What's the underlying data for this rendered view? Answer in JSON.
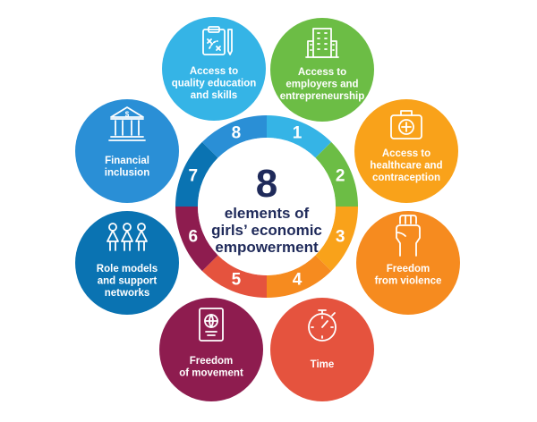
{
  "center": {
    "number": "8",
    "lines": [
      "elements of",
      "girls’ economic",
      "empowerment"
    ]
  },
  "elements": [
    {
      "number": "1",
      "lines": [
        "Access to",
        "quality education",
        "and skills"
      ],
      "color": "#35b4e6",
      "icon": "clipboard-plan-icon"
    },
    {
      "number": "2",
      "lines": [
        "Access to",
        "employers and",
        "entrepreneurship"
      ],
      "color": "#6cbd45",
      "icon": "office-building-icon"
    },
    {
      "number": "3",
      "lines": [
        "Access to",
        "healthcare and",
        "contraception"
      ],
      "color": "#f9a21a",
      "icon": "first-aid-kit-icon"
    },
    {
      "number": "4",
      "lines": [
        "Freedom",
        "from violence"
      ],
      "color": "#f68b1f",
      "icon": "raised-fist-icon"
    },
    {
      "number": "5",
      "lines": [
        "Time"
      ],
      "color": "#e5533e",
      "icon": "stopwatch-icon"
    },
    {
      "number": "6",
      "lines": [
        "Freedom",
        "of movement"
      ],
      "color": "#8e1c4f",
      "icon": "passport-icon"
    },
    {
      "number": "7",
      "lines": [
        "Role models",
        "and support",
        "networks"
      ],
      "color": "#0a73b2",
      "icon": "three-women-icon"
    },
    {
      "number": "8",
      "lines": [
        "Financial",
        "inclusion"
      ],
      "color": "#2a8fd6",
      "icon": "bank-icon"
    }
  ]
}
